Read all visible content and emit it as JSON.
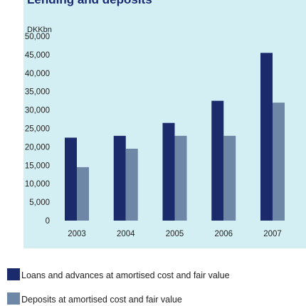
{
  "title_fragment": "Lending and deposits",
  "chart_data": {
    "type": "bar",
    "title": "Lending and deposits",
    "ylabel": "DKKbn",
    "xlabel": "",
    "categories": [
      "2003",
      "2004",
      "2005",
      "2006",
      "2007"
    ],
    "series": [
      {
        "name": "Loans and advances at amortised cost and fair value",
        "color": "#1b2a6b",
        "values": [
          22500,
          23000,
          26500,
          32500,
          45500
        ]
      },
      {
        "name": "Deposits at amortised cost and fair value",
        "color": "#6e87a6",
        "values": [
          14500,
          19500,
          23000,
          23000,
          32000
        ]
      }
    ],
    "ylim": [
      0,
      50000
    ],
    "yticks": [
      0,
      5000,
      10000,
      15000,
      20000,
      25000,
      30000,
      35000,
      40000,
      45000,
      50000
    ],
    "ytick_labels": [
      "0",
      "5,000",
      "10,000",
      "15,000",
      "20,000",
      "25,000",
      "30,000",
      "35,000",
      "40,000",
      "45,000",
      "50,000"
    ],
    "grid": false,
    "legend_position": "bottom"
  }
}
